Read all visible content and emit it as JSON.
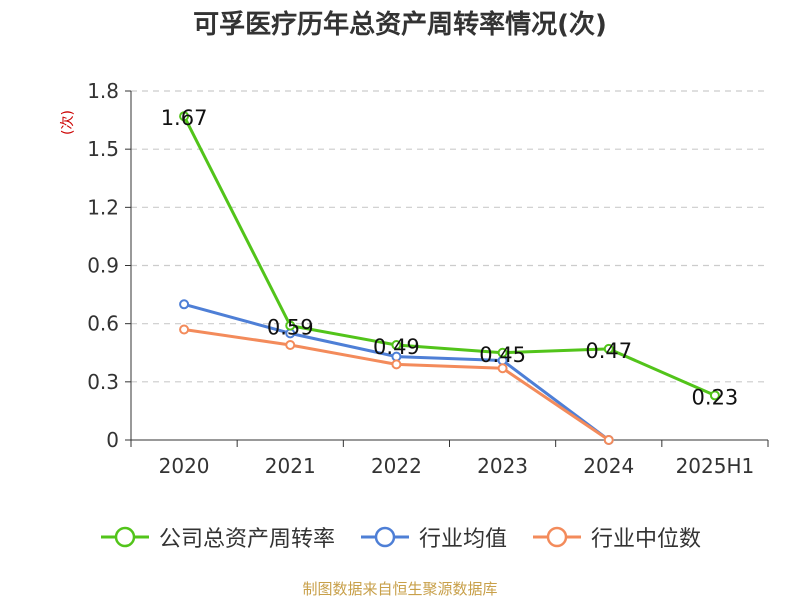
{
  "chart_data": {
    "type": "line",
    "title": "可孚医疗历年总资产周转率情况(次)",
    "ylabel": "(次)",
    "categories": [
      "2020",
      "2021",
      "2022",
      "2023",
      "2024",
      "2025H1"
    ],
    "ylim": [
      0,
      1.8
    ],
    "yticks": [
      "0",
      "0.3",
      "0.6",
      "0.9",
      "1.2",
      "1.5",
      "1.8"
    ],
    "grid": true,
    "legend_position": "bottom",
    "series": [
      {
        "name": "公司总资产周转率",
        "color": "#52c41a",
        "values": [
          1.67,
          0.59,
          0.49,
          0.45,
          0.47,
          0.23
        ],
        "labels": [
          "1.67",
          "0.59",
          "0.49",
          "0.45",
          "0.47",
          "0.23"
        ]
      },
      {
        "name": "行业均值",
        "color": "#4e7fd6",
        "values": [
          0.7,
          0.55,
          0.43,
          0.41,
          0.0,
          null
        ]
      },
      {
        "name": "行业中位数",
        "color": "#f38b5b",
        "values": [
          0.57,
          0.49,
          0.39,
          0.37,
          0.0,
          null
        ]
      }
    ]
  },
  "source_note": "制图数据来自恒生聚源数据库"
}
